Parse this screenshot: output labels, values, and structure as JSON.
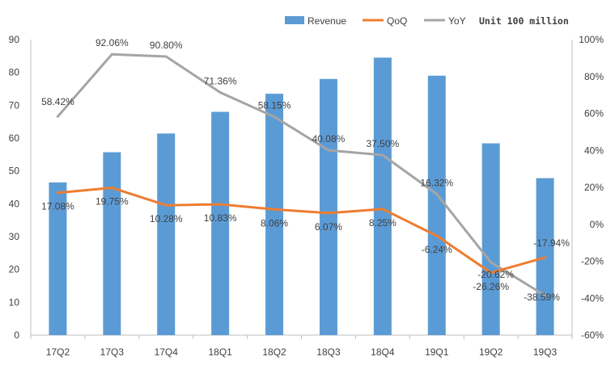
{
  "chart_data": {
    "type": "bar",
    "categories": [
      "17Q2",
      "17Q3",
      "17Q4",
      "18Q1",
      "18Q2",
      "18Q3",
      "18Q4",
      "19Q1",
      "19Q2",
      "19Q3"
    ],
    "series": [
      {
        "name": "Revenue",
        "type": "bar",
        "axis": "left",
        "color": "#5B9BD5",
        "values": [
          46.5,
          55.7,
          61.4,
          68.0,
          73.5,
          78.0,
          84.5,
          79.0,
          58.4,
          47.8
        ]
      },
      {
        "name": "QoQ",
        "type": "line",
        "axis": "right",
        "color": "#ED7D31",
        "values": [
          17.08,
          19.75,
          10.28,
          10.83,
          8.06,
          6.07,
          8.25,
          -6.24,
          -26.26,
          -17.94
        ],
        "labels": [
          "17.08%",
          "19.75%",
          "10.28%",
          "10.83%",
          "8.06%",
          "6.07%",
          "8.25%",
          "-6.24%",
          "-26.26%",
          "-17.94%"
        ]
      },
      {
        "name": "YoY",
        "type": "line",
        "axis": "right",
        "color": "#A5A5A5",
        "values": [
          58.42,
          92.06,
          90.8,
          71.36,
          58.15,
          40.08,
          37.5,
          16.32,
          -20.62,
          -38.59
        ],
        "labels": [
          "58.42%",
          "92.06%",
          "90.80%",
          "71.36%",
          "58.15%",
          "40.08%",
          "37.50%",
          "16.32%",
          "-20.62%",
          "-38.59%"
        ]
      }
    ],
    "unit_note": "Unit 100 million",
    "ylim": [
      0,
      90
    ],
    "y_ticks": [
      "0",
      "10",
      "20",
      "30",
      "40",
      "50",
      "60",
      "70",
      "80",
      "90"
    ],
    "y2lim": [
      -60,
      100
    ],
    "y2_ticks": [
      "-60%",
      "-40%",
      "-20%",
      "0%",
      "20%",
      "40%",
      "60%",
      "80%",
      "100%"
    ],
    "legend_position": "top-right",
    "grid": false
  }
}
